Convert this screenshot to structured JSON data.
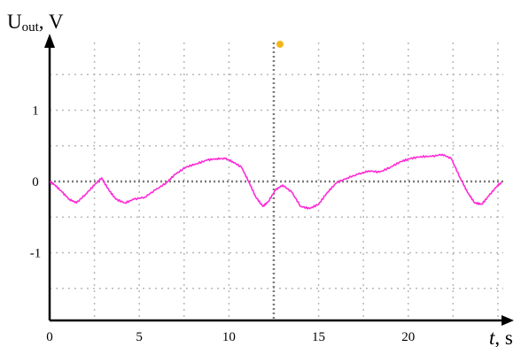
{
  "colors": {
    "trace": "#ff2bd6",
    "grid_dots": "#b8b8b8",
    "grid_center": "#7a7a7a",
    "axis": "#000000",
    "marker": "#f2b61c"
  },
  "chart_data": {
    "type": "line",
    "title": "",
    "ylabel": {
      "main": "U",
      "sub": "out",
      "unit": ", V"
    },
    "xlabel": {
      "main": "t",
      "unit": ", s"
    },
    "xlim": [
      0,
      25.3
    ],
    "ylim": [
      -1.95,
      1.95
    ],
    "x_ticks": [
      "0",
      "5",
      "10",
      "15",
      "20"
    ],
    "y_ticks": [
      "1",
      "0",
      "-1"
    ],
    "grid": true,
    "series": [
      {
        "name": "",
        "x": [
          0,
          0.3,
          0.7,
          1.1,
          1.5,
          2.0,
          2.5,
          2.9,
          3.3,
          3.7,
          4.2,
          4.7,
          5.3,
          5.9,
          6.5,
          7.0,
          7.6,
          8.2,
          8.8,
          9.3,
          9.8,
          10.2,
          10.7,
          11.1,
          11.5,
          11.9,
          12.2,
          12.6,
          13.0,
          13.5,
          14.0,
          14.5,
          15.0,
          15.5,
          16.0,
          16.6,
          17.2,
          17.8,
          18.4,
          19.0,
          19.6,
          20.1,
          20.7,
          21.3,
          21.9,
          22.4,
          22.9,
          23.3,
          23.7,
          24.1,
          24.5,
          25.0,
          25.2
        ],
        "y": [
          0.0,
          -0.05,
          -0.15,
          -0.25,
          -0.3,
          -0.18,
          -0.05,
          0.05,
          -0.12,
          -0.25,
          -0.3,
          -0.25,
          -0.22,
          -0.12,
          -0.02,
          0.1,
          0.2,
          0.25,
          0.3,
          0.32,
          0.32,
          0.28,
          0.2,
          0.0,
          -0.22,
          -0.35,
          -0.28,
          -0.12,
          -0.05,
          -0.15,
          -0.35,
          -0.38,
          -0.32,
          -0.15,
          -0.02,
          0.05,
          0.1,
          0.15,
          0.13,
          0.2,
          0.28,
          0.32,
          0.35,
          0.35,
          0.38,
          0.32,
          0.05,
          -0.15,
          -0.3,
          -0.32,
          -0.2,
          -0.05,
          -0.02
        ]
      }
    ]
  }
}
